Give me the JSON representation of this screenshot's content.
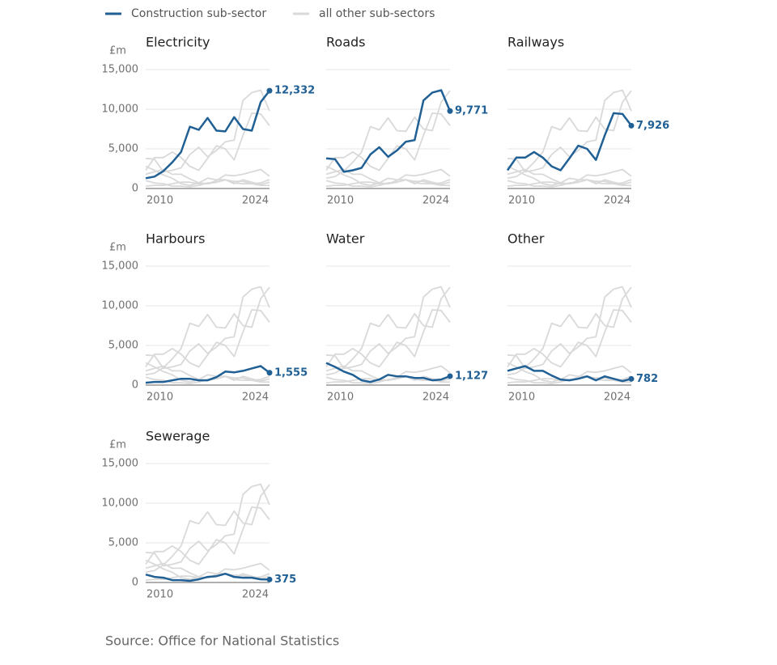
{
  "chart_data": {
    "type": "line",
    "legend": [
      {
        "label": "Construction sub-sector",
        "color": "#206095"
      },
      {
        "label": "all other sub-sectors",
        "color": "#d9d9d9"
      }
    ],
    "y_label": "£m",
    "x": [
      2010,
      2011,
      2012,
      2013,
      2014,
      2015,
      2016,
      2017,
      2018,
      2019,
      2020,
      2021,
      2022,
      2023,
      2024
    ],
    "xlim": [
      2010,
      2024
    ],
    "xticks": [
      2010,
      2024
    ],
    "ylim": [
      0,
      15000
    ],
    "yticks": [
      0,
      {
        "value": 5000,
        "label": "5,000"
      },
      {
        "value": 10000,
        "label": "10,000"
      },
      {
        "value": 15000,
        "label": "15,000"
      }
    ],
    "grid": true,
    "highlight_color": "#206095",
    "other_color": "#d9d9d9",
    "series": [
      {
        "name": "Electricity",
        "values": [
          1300,
          1500,
          2200,
          3300,
          4600,
          7800,
          7400,
          8900,
          7300,
          7200,
          9000,
          7500,
          7300,
          10900,
          12332
        ],
        "value_labels": [
          null,
          null,
          null,
          null,
          null,
          null,
          null,
          null,
          null,
          null,
          null,
          null,
          null,
          null,
          "12,332"
        ]
      },
      {
        "name": "Roads",
        "values": [
          3800,
          3700,
          2100,
          2300,
          2600,
          4300,
          5200,
          4000,
          4800,
          5900,
          6100,
          11100,
          12100,
          12400,
          9771
        ],
        "value_labels": [
          null,
          null,
          null,
          null,
          null,
          null,
          null,
          null,
          null,
          null,
          null,
          null,
          null,
          null,
          "9,771"
        ]
      },
      {
        "name": "Railways",
        "values": [
          2300,
          3900,
          3900,
          4600,
          3900,
          2800,
          2300,
          3800,
          5400,
          5000,
          3600,
          6700,
          9500,
          9400,
          7926
        ],
        "value_labels": [
          null,
          null,
          null,
          null,
          null,
          null,
          null,
          null,
          null,
          null,
          null,
          null,
          null,
          null,
          "7,926"
        ]
      },
      {
        "name": "Harbours",
        "values": [
          300,
          400,
          400,
          600,
          800,
          800,
          600,
          600,
          1000,
          1700,
          1600,
          1800,
          2100,
          2400,
          1555
        ],
        "value_labels": [
          null,
          null,
          null,
          null,
          null,
          null,
          null,
          null,
          null,
          null,
          null,
          null,
          null,
          null,
          "1,555"
        ]
      },
      {
        "name": "Water",
        "values": [
          2800,
          2300,
          1700,
          1300,
          600,
          400,
          700,
          1300,
          1100,
          1100,
          900,
          900,
          600,
          700,
          1127
        ],
        "value_labels": [
          null,
          null,
          null,
          null,
          null,
          null,
          null,
          null,
          null,
          null,
          null,
          null,
          null,
          null,
          "1,127"
        ]
      },
      {
        "name": "Other",
        "values": [
          1800,
          2100,
          2400,
          1800,
          1800,
          1200,
          700,
          600,
          800,
          1100,
          600,
          1100,
          800,
          500,
          782
        ]
      },
      {
        "name": "Sewerage",
        "values": [
          1000,
          700,
          600,
          300,
          300,
          200,
          400,
          700,
          800,
          1100,
          700,
          600,
          600,
          400,
          375
        ]
      }
    ],
    "source": "Source: Office for National Statistics"
  }
}
